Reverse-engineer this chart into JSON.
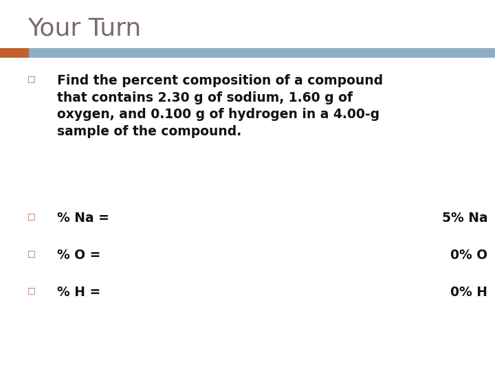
{
  "title": "Your Turn",
  "title_color": "#7a6b6b",
  "title_fontsize": 26,
  "title_font": "sans-serif",
  "title_weight": "normal",
  "bar_color_orange": "#c0622a",
  "bar_color_blue": "#8eaec5",
  "background_color": "#ffffff",
  "bullet_color": "#c0622a",
  "bullet_char": "□",
  "bullet_size": 9,
  "text_color": "#111111",
  "text_fontsize": 13.5,
  "text_font": "DejaVu Sans",
  "text1": "Find the percent composition of a compound\nthat contains 2.30 g of sodium, 1.60 g of\noxygen, and 0.100 g of hydrogen in a 4.00-g\nsample of the compound.",
  "text2_left": "% Na =",
  "text2_right": "5% Na",
  "text3_left": "% O =",
  "text3_right": "0% O",
  "text4_left": "% H =",
  "text4_right": "0% H"
}
